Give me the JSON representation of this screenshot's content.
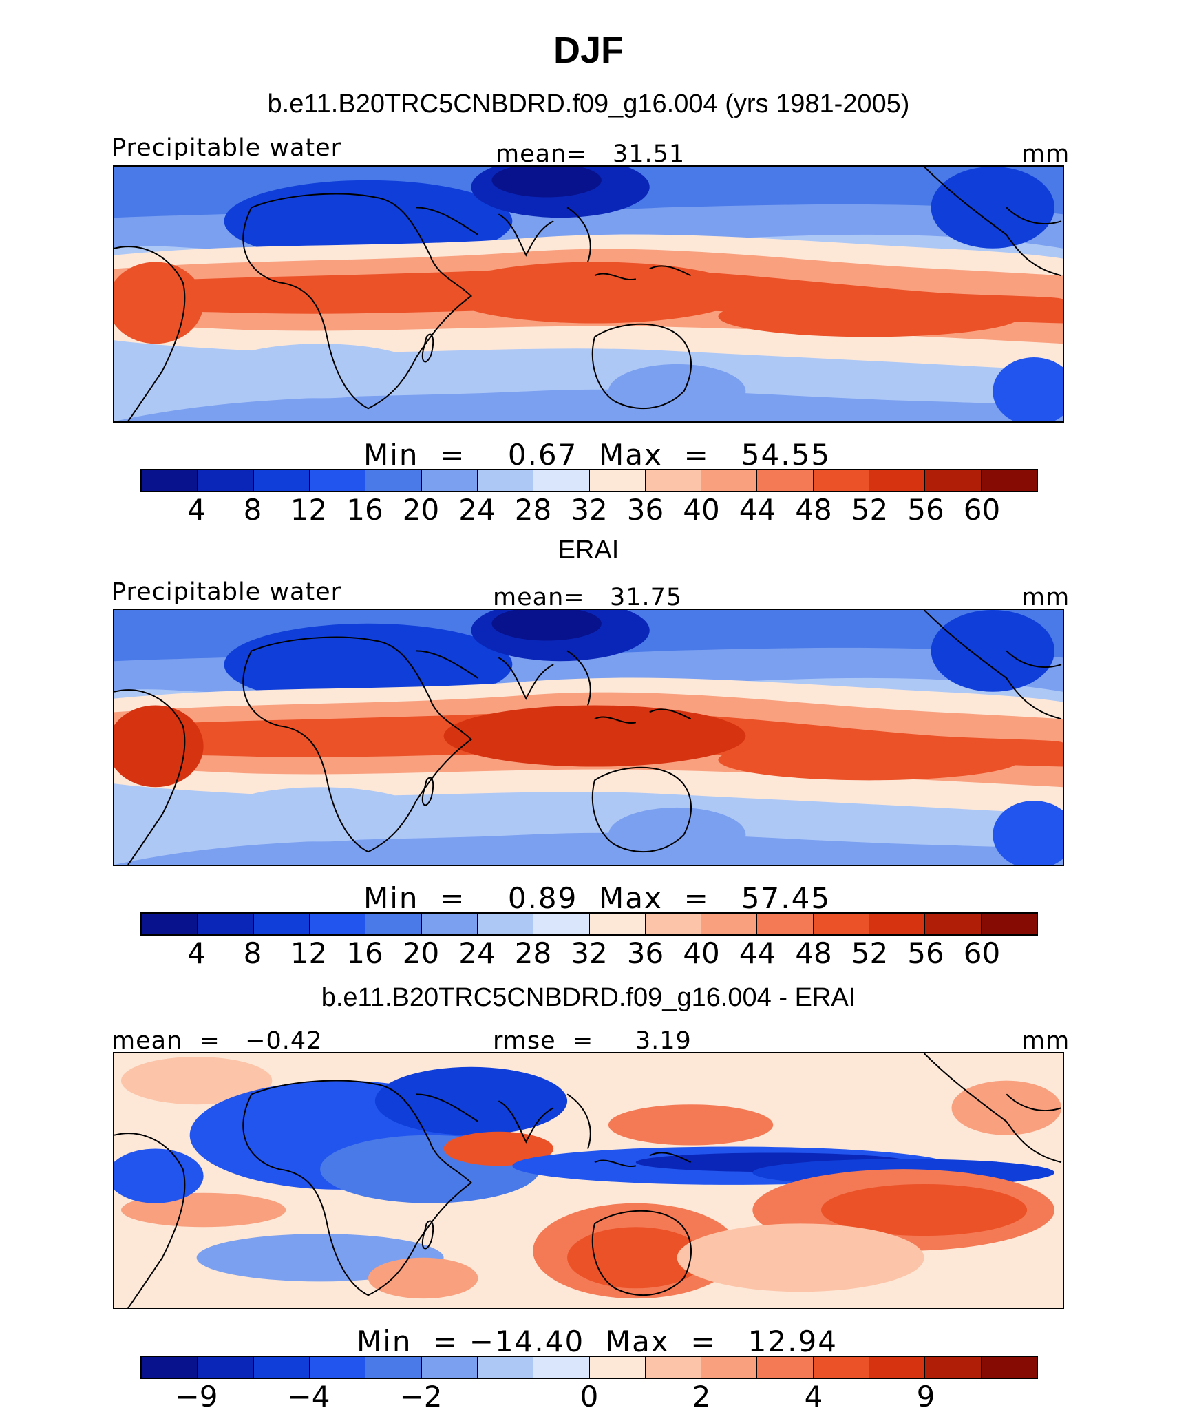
{
  "title": "DJF",
  "panels": [
    {
      "subtitle": "b.e11.B20TRC5CNBDRD.f09_g16.004 (yrs 1981-2005)",
      "left_label": "Precipitable water",
      "center_label": "mean=   31.51",
      "units": "mm",
      "stats": "Min  =    0.67  Max  =   54.55",
      "field": "absolute"
    },
    {
      "subtitle": "ERAI",
      "left_label": "Precipitable water",
      "center_label": "mean=   31.75",
      "units": "mm",
      "stats": "Min  =    0.89  Max  =   57.45",
      "field": "absolute"
    },
    {
      "subtitle": "b.e11.B20TRC5CNBDRD.f09_g16.004 - ERAI",
      "left_label": "mean  =   −0.42",
      "center_label": "rmse  =     3.19",
      "units": "mm",
      "stats": "Min  = −14.40  Max  =   12.94",
      "field": "difference"
    }
  ],
  "colorbar": {
    "colors": [
      "#08128c",
      "#0a26b8",
      "#0f3ed9",
      "#2255ee",
      "#4a7ae8",
      "#7ba0f0",
      "#aec8f6",
      "#d9e6fb",
      "#fde8d8",
      "#fcc4a8",
      "#f9a07f",
      "#f47a55",
      "#eb5228",
      "#d63311",
      "#b01e08",
      "#850b03"
    ],
    "abs_ticks": [
      "4",
      "8",
      "12",
      "16",
      "20",
      "24",
      "28",
      "32",
      "36",
      "40",
      "44",
      "48",
      "52",
      "56",
      "60"
    ],
    "diff_ticks": [
      {
        "label": "−9",
        "index": 1
      },
      {
        "label": "−4",
        "index": 3
      },
      {
        "label": "−2",
        "index": 5
      },
      {
        "label": "0",
        "index": 8
      },
      {
        "label": "2",
        "index": 10
      },
      {
        "label": "4",
        "index": 12
      },
      {
        "label": "9",
        "index": 14
      }
    ]
  }
}
